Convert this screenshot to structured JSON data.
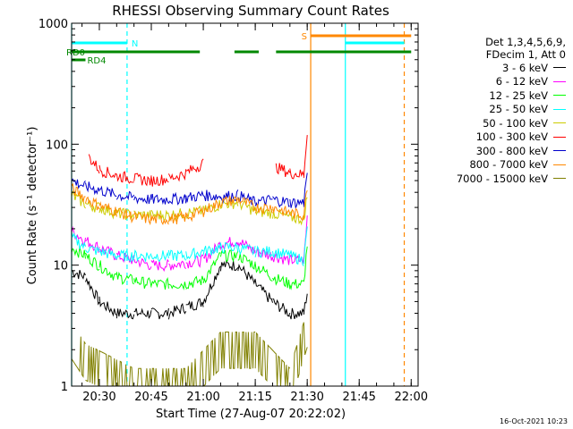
{
  "chart_data": {
    "type": "line",
    "title": "RHESSI Observing Summary Count Rates",
    "xlabel": "Start Time (27-Aug-07 20:22:02)",
    "ylabel": "Count Rate (s⁻¹ detector⁻¹)",
    "yscale": "log",
    "xlim": [
      "20:22",
      "22:02"
    ],
    "ylim": [
      1,
      1000
    ],
    "x_ticks": [
      "20:30",
      "20:45",
      "21:00",
      "21:15",
      "21:30",
      "21:45",
      "22:00"
    ],
    "y_ticks": [
      "1",
      "10",
      "100",
      "1000"
    ],
    "legend_header": [
      "Det 1,3,4,5,6,9,",
      "FDecim 1, Att 0"
    ],
    "legend_position": "right, outside plot",
    "series": [
      {
        "name": "3 - 6 keV",
        "color": "#000000",
        "x": [
          "20:22",
          "20:26",
          "20:30",
          "20:35",
          "20:40",
          "20:45",
          "20:50",
          "20:55",
          "21:00",
          "21:05",
          "21:10",
          "21:15",
          "21:20",
          "21:25",
          "21:29",
          "21:30"
        ],
        "y": [
          9,
          8,
          5,
          4,
          4,
          4,
          4,
          4.5,
          5,
          10,
          10,
          7,
          5,
          4,
          4,
          6
        ]
      },
      {
        "name": "6 - 12 keV",
        "color": "#ff00ff",
        "x": [
          "20:22",
          "20:26",
          "20:30",
          "20:35",
          "20:40",
          "20:45",
          "20:50",
          "20:55",
          "21:00",
          "21:05",
          "21:10",
          "21:15",
          "21:20",
          "21:25",
          "21:29",
          "21:30"
        ],
        "y": [
          19,
          16,
          14,
          12,
          11,
          10,
          10,
          10.5,
          11,
          15,
          16,
          13,
          12,
          11,
          11,
          25
        ]
      },
      {
        "name": "12 - 25 keV",
        "color": "#00ff00",
        "x": [
          "20:22",
          "20:26",
          "20:30",
          "20:35",
          "20:40",
          "20:45",
          "20:50",
          "20:55",
          "21:00",
          "21:05",
          "21:10",
          "21:15",
          "21:20",
          "21:25",
          "21:29",
          "21:30"
        ],
        "y": [
          14,
          12,
          10,
          8,
          7.5,
          7,
          7,
          7,
          7.5,
          12,
          12,
          10,
          8,
          7,
          7,
          15
        ]
      },
      {
        "name": "25 - 50 keV",
        "color": "#00ffff",
        "x": [
          "20:22",
          "20:26",
          "20:30",
          "20:35",
          "20:40",
          "20:45",
          "20:50",
          "20:55",
          "21:00",
          "21:05",
          "21:10",
          "21:15",
          "21:20",
          "21:25",
          "21:29",
          "21:30"
        ],
        "y": [
          17,
          14,
          13,
          12,
          12,
          12,
          12,
          12,
          13,
          14,
          14,
          13,
          13,
          12,
          11,
          20
        ]
      },
      {
        "name": "50 - 100 keV",
        "color": "#cccc00",
        "x": [
          "20:22",
          "20:26",
          "20:30",
          "20:35",
          "20:40",
          "20:45",
          "20:50",
          "20:55",
          "21:00",
          "21:05",
          "21:10",
          "21:15",
          "21:20",
          "21:25",
          "21:29",
          "21:30"
        ],
        "y": [
          38,
          32,
          30,
          27,
          26,
          26,
          26,
          27,
          28,
          32,
          33,
          28,
          27,
          25,
          24,
          38
        ]
      },
      {
        "name": "100 - 300 keV",
        "color": "#ff0000",
        "x": [
          "20:22",
          "20:26",
          "20:27",
          "20:30",
          "20:35",
          "20:40",
          "20:45",
          "20:50",
          "20:55",
          "21:00",
          "21:20",
          "21:21",
          "21:25",
          "21:29",
          "21:30"
        ],
        "y": [
          null,
          null,
          78,
          62,
          55,
          52,
          50,
          52,
          58,
          70,
          null,
          65,
          58,
          56,
          130
        ]
      },
      {
        "name": "300 - 800 keV",
        "color": "#0000cc",
        "x": [
          "20:22",
          "20:26",
          "20:30",
          "20:35",
          "20:40",
          "20:45",
          "20:50",
          "20:55",
          "21:00",
          "21:05",
          "21:10",
          "21:15",
          "21:20",
          "21:25",
          "21:29",
          "21:30"
        ],
        "y": [
          50,
          45,
          42,
          38,
          36,
          35,
          35,
          36,
          38,
          37,
          38,
          33,
          35,
          33,
          33,
          60
        ]
      },
      {
        "name": "800 - 7000 keV",
        "color": "#ff8800",
        "x": [
          "20:22",
          "20:26",
          "20:30",
          "20:35",
          "20:40",
          "20:45",
          "20:50",
          "20:55",
          "21:00",
          "21:05",
          "21:10",
          "21:15",
          "21:20",
          "21:25",
          "21:29",
          "21:30"
        ],
        "y": [
          43,
          36,
          31,
          28,
          25,
          24,
          24,
          25,
          28,
          33,
          35,
          30,
          30,
          27,
          26,
          45
        ]
      },
      {
        "name": "7000 - 15000 keV",
        "color": "#808000",
        "x": [
          "20:22",
          "20:26",
          "20:40",
          "20:55",
          "21:05",
          "21:15",
          "21:25",
          "21:30"
        ],
        "y": [
          2.4,
          1.6,
          1,
          1,
          2,
          2,
          1,
          3
        ]
      }
    ],
    "flag_bars": [
      {
        "label": "N",
        "color": "#00ffff",
        "x": [
          [
            "20:22",
            "20:38"
          ],
          [
            "21:41",
            "21:58"
          ]
        ],
        "level": 1
      },
      {
        "label": "RD0",
        "color": "#008800",
        "x": [
          [
            "20:22",
            "20:26"
          ]
        ],
        "level": 2
      },
      {
        "label": "RD4",
        "color": "#008800",
        "x": [
          [
            "20:22",
            "20:26"
          ]
        ],
        "level": 3
      },
      {
        "label": "",
        "color": "#008800",
        "x": [
          [
            "20:26",
            "20:59"
          ],
          [
            "21:09",
            "21:16"
          ],
          [
            "21:21",
            "22:00"
          ]
        ],
        "level": 2
      },
      {
        "label": "S",
        "color": "#ff8800",
        "x": [
          [
            "21:31",
            "22:00"
          ]
        ],
        "level": 0
      }
    ],
    "vertical_markers": [
      {
        "x": "20:22",
        "color": "#00ffff",
        "style": "solid"
      },
      {
        "x": "20:38",
        "color": "#00ffff",
        "style": "dashed"
      },
      {
        "x": "21:31",
        "color": "#ff8800",
        "style": "solid"
      },
      {
        "x": "21:41",
        "color": "#00ffff",
        "style": "solid"
      },
      {
        "x": "21:58",
        "color": "#ff8800",
        "style": "dashed"
      }
    ],
    "grid": false
  },
  "footer_timestamp": "16-Oct-2021 10:23"
}
